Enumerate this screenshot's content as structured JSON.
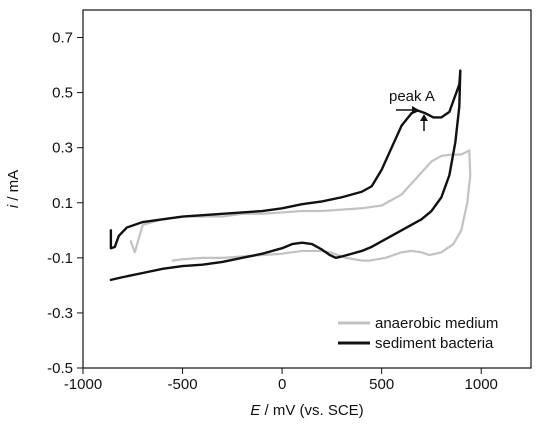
{
  "chart_data": {
    "type": "line",
    "xlabel_symbol": "E",
    "xlabel_rest": " / mV (vs. SCE)",
    "ylabel_symbol": "i",
    "ylabel_rest": " / mA",
    "xlim": [
      -1000,
      1250
    ],
    "ylim": [
      -0.5,
      0.8
    ],
    "x_ticks": [
      -1000,
      -500,
      0,
      500,
      1000
    ],
    "y_ticks": [
      -0.5,
      -0.3,
      -0.1,
      0.1,
      0.3,
      0.5,
      0.7
    ],
    "x_tick_labels": [
      "-1000",
      "-500",
      "0",
      "500",
      "1000"
    ],
    "y_tick_labels": [
      "-0.5",
      "-0.3",
      "-0.1",
      "0.1",
      "0.3",
      "0.5",
      "0.7"
    ],
    "grid": false,
    "legend_position": "bottom-right",
    "annotation": {
      "text": "peak A",
      "x": 670,
      "y": 0.43
    },
    "series": [
      {
        "name": "anaerobic medium",
        "color": "#c2c2c2",
        "points": [
          [
            -760,
            -0.04
          ],
          [
            -740,
            -0.08
          ],
          [
            -700,
            0.02
          ],
          [
            -600,
            0.04
          ],
          [
            -500,
            0.05
          ],
          [
            -400,
            0.05
          ],
          [
            -300,
            0.05
          ],
          [
            -200,
            0.06
          ],
          [
            -100,
            0.06
          ],
          [
            0,
            0.065
          ],
          [
            100,
            0.07
          ],
          [
            200,
            0.07
          ],
          [
            300,
            0.075
          ],
          [
            400,
            0.08
          ],
          [
            500,
            0.09
          ],
          [
            600,
            0.13
          ],
          [
            650,
            0.17
          ],
          [
            700,
            0.21
          ],
          [
            750,
            0.25
          ],
          [
            800,
            0.27
          ],
          [
            850,
            0.275
          ],
          [
            900,
            0.275
          ],
          [
            940,
            0.29
          ],
          [
            945,
            0.2
          ],
          [
            930,
            0.1
          ],
          [
            900,
            0.0
          ],
          [
            860,
            -0.05
          ],
          [
            800,
            -0.08
          ],
          [
            740,
            -0.09
          ],
          [
            700,
            -0.08
          ],
          [
            650,
            -0.075
          ],
          [
            600,
            -0.08
          ],
          [
            560,
            -0.09
          ],
          [
            520,
            -0.1
          ],
          [
            480,
            -0.105
          ],
          [
            440,
            -0.11
          ],
          [
            400,
            -0.11
          ],
          [
            360,
            -0.105
          ],
          [
            320,
            -0.1
          ],
          [
            280,
            -0.09
          ],
          [
            240,
            -0.08
          ],
          [
            200,
            -0.075
          ],
          [
            150,
            -0.075
          ],
          [
            100,
            -0.075
          ],
          [
            50,
            -0.08
          ],
          [
            0,
            -0.085
          ],
          [
            -100,
            -0.09
          ],
          [
            -200,
            -0.095
          ],
          [
            -300,
            -0.1
          ],
          [
            -400,
            -0.1
          ],
          [
            -500,
            -0.105
          ],
          [
            -550,
            -0.11
          ]
        ]
      },
      {
        "name": "sediment bacteria",
        "color": "#111111",
        "points": [
          [
            -860,
            0.0
          ],
          [
            -860,
            -0.065
          ],
          [
            -840,
            -0.06
          ],
          [
            -820,
            -0.02
          ],
          [
            -780,
            0.01
          ],
          [
            -700,
            0.03
          ],
          [
            -600,
            0.04
          ],
          [
            -500,
            0.05
          ],
          [
            -400,
            0.055
          ],
          [
            -300,
            0.06
          ],
          [
            -200,
            0.065
          ],
          [
            -100,
            0.07
          ],
          [
            0,
            0.08
          ],
          [
            100,
            0.095
          ],
          [
            200,
            0.105
          ],
          [
            300,
            0.12
          ],
          [
            400,
            0.14
          ],
          [
            450,
            0.16
          ],
          [
            500,
            0.22
          ],
          [
            550,
            0.3
          ],
          [
            600,
            0.38
          ],
          [
            650,
            0.425
          ],
          [
            680,
            0.435
          ],
          [
            720,
            0.425
          ],
          [
            760,
            0.41
          ],
          [
            800,
            0.41
          ],
          [
            840,
            0.43
          ],
          [
            870,
            0.49
          ],
          [
            890,
            0.53
          ],
          [
            895,
            0.58
          ],
          [
            890,
            0.45
          ],
          [
            870,
            0.32
          ],
          [
            840,
            0.2
          ],
          [
            800,
            0.12
          ],
          [
            750,
            0.07
          ],
          [
            700,
            0.04
          ],
          [
            650,
            0.02
          ],
          [
            600,
            0.0
          ],
          [
            550,
            -0.02
          ],
          [
            500,
            -0.04
          ],
          [
            450,
            -0.06
          ],
          [
            400,
            -0.075
          ],
          [
            350,
            -0.085
          ],
          [
            300,
            -0.095
          ],
          [
            270,
            -0.1
          ],
          [
            240,
            -0.09
          ],
          [
            200,
            -0.07
          ],
          [
            150,
            -0.05
          ],
          [
            100,
            -0.045
          ],
          [
            50,
            -0.05
          ],
          [
            0,
            -0.065
          ],
          [
            -100,
            -0.085
          ],
          [
            -200,
            -0.1
          ],
          [
            -300,
            -0.115
          ],
          [
            -400,
            -0.125
          ],
          [
            -500,
            -0.13
          ],
          [
            -600,
            -0.14
          ],
          [
            -700,
            -0.155
          ],
          [
            -800,
            -0.17
          ],
          [
            -860,
            -0.18
          ]
        ]
      }
    ]
  }
}
